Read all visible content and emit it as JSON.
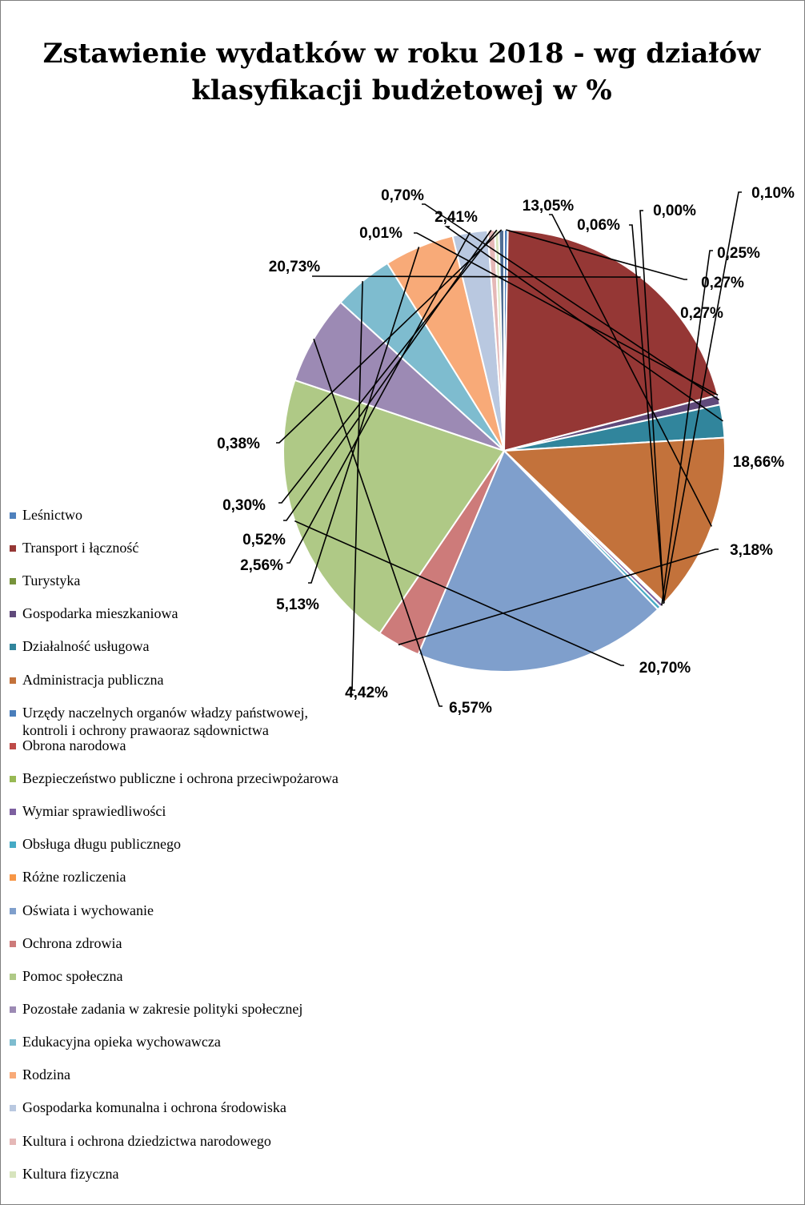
{
  "chart_data": {
    "type": "pie",
    "title_lines": [
      "Zstawienie wydatków w roku 2018 - wg działów",
      "klasyfikacji budżetowej w %"
    ],
    "legend_position": "left",
    "slices": [
      {
        "name": "Leśnictwo",
        "value": 0.27,
        "label": "0,27%",
        "color": "#4f81bd"
      },
      {
        "name": "Transport i łączność",
        "value": 20.73,
        "label": "20,73%",
        "color": "#953735"
      },
      {
        "name": "Turystyka",
        "value": 0.01,
        "label": "0,01%",
        "color": "#77933c"
      },
      {
        "name": "Gospodarka mieszkaniowa",
        "value": 0.7,
        "label": "0,70%",
        "color": "#604a7b"
      },
      {
        "name": "Działalność usługowa",
        "value": 2.41,
        "label": "2,41%",
        "color": "#31859c"
      },
      {
        "name": "Administracja publiczna",
        "value": 13.05,
        "label": "13,05%",
        "color": "#c3723b"
      },
      {
        "name": "Urzędy naczelnych organów władzy państwowej,\nkontroli i ochrony prawaoraz sądownictwa",
        "value": 0.06,
        "label": "0,06%",
        "color": "#4a7ebb"
      },
      {
        "name": "Obrona narodowa",
        "value": 0.0,
        "label": "0,00%",
        "color": "#be4b48"
      },
      {
        "name": "Bezpieczeństwo publiczne i ochrona przeciwpożarowa",
        "value": 0.1,
        "label": "0,10%",
        "color": "#98b954"
      },
      {
        "name": "Wymiar sprawiedliwości",
        "value": 0.25,
        "label": "0,25%",
        "color": "#7d60a0"
      },
      {
        "name": "Obsługa długu publicznego",
        "value": 0.27,
        "label": "0,27%",
        "color": "#46aac5"
      },
      {
        "name": "Różne rozliczenia",
        "value": 0.0,
        "label": "0,00%",
        "color": "#f79646"
      },
      {
        "name": "Oświata i wychowanie",
        "value": 18.66,
        "label": "18,66%",
        "color": "#7f9fcc"
      },
      {
        "name": "Ochrona zdrowia",
        "value": 3.18,
        "label": "3,18%",
        "color": "#cd7b7a"
      },
      {
        "name": "Pomoc społeczna",
        "value": 20.7,
        "label": "20,70%",
        "color": "#afc986"
      },
      {
        "name": "Pozostałe zadania w zakresie polityki społecznej",
        "value": 6.57,
        "label": "6,57%",
        "color": "#9c8ab4"
      },
      {
        "name": "Edukacyjna opieka wychowawcza",
        "value": 4.42,
        "label": "4,42%",
        "color": "#7ebccf"
      },
      {
        "name": "Rodzina",
        "value": 5.13,
        "label": "5,13%",
        "color": "#f8aa78"
      },
      {
        "name": "Gospodarka komunalna i ochrona środowiska",
        "value": 2.56,
        "label": "2,56%",
        "color": "#b9c8e0"
      },
      {
        "name": "Kultura i ochrona dziedzictwa narodowego",
        "value": 0.52,
        "label": "0,52%",
        "color": "#e5b8b7"
      },
      {
        "name": "Kultura fizyczna",
        "value": 0.3,
        "label": "0,30%",
        "color": "#d7e4bd"
      },
      {
        "name": "",
        "value": 0.38,
        "label": "0,38%",
        "color": "#4f6d94"
      }
    ]
  }
}
